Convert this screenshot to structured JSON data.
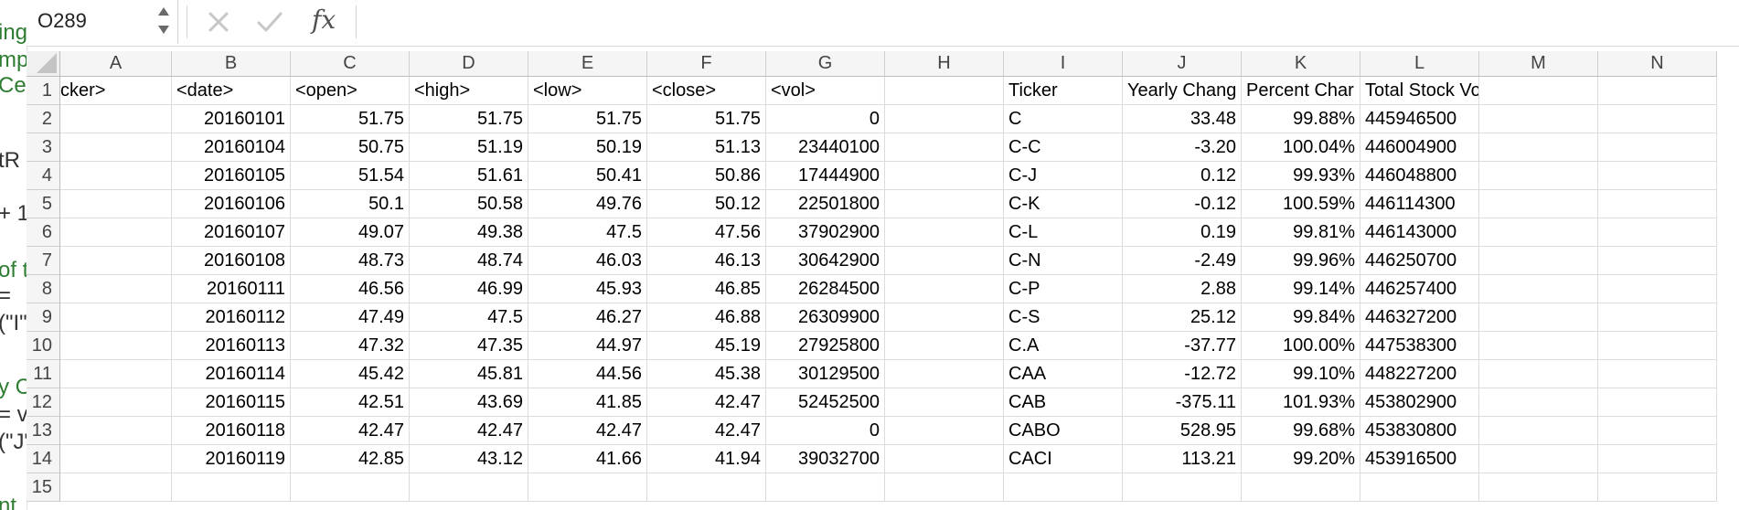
{
  "left_window_fragments": [
    "ing",
    "mp",
    "Cel",
    "tR",
    "+ 1",
    "of t",
    " =",
    "(\"I\"",
    "y C",
    "= v",
    "(\"J\"",
    "nt"
  ],
  "formula_bar": {
    "name_box": "O289",
    "cancel_icon": "x-icon",
    "enter_icon": "check-icon",
    "fx_label": "fx",
    "formula_value": ""
  },
  "columns": [
    "A",
    "B",
    "C",
    "D",
    "E",
    "F",
    "G",
    "H",
    "I",
    "J",
    "K",
    "L",
    "M",
    "N"
  ],
  "row_numbers": [
    "1",
    "2",
    "3",
    "4",
    "5",
    "6",
    "7",
    "8",
    "9",
    "10",
    "11",
    "12",
    "13",
    "14",
    "15"
  ],
  "header_row": [
    "<ticker>",
    "<date>",
    "<open>",
    "<high>",
    "<low>",
    "<close>",
    "<vol>",
    "",
    "Ticker",
    "Yearly Change",
    "Percent Change",
    "Total Stock Volume",
    "",
    ""
  ],
  "header_row_visible": [
    "cker>",
    "<date>",
    "<open>",
    "<high>",
    "<low>",
    "<close>",
    "<vol>",
    "",
    "Ticker",
    "Yearly Chang",
    "Percent Char",
    "Total Stock Volume",
    "",
    ""
  ],
  "rows": [
    [
      "",
      "20160101",
      "51.75",
      "51.75",
      "51.75",
      "51.75",
      "0",
      "",
      "C",
      "33.48",
      "99.88%",
      "445946500",
      "",
      ""
    ],
    [
      "",
      "20160104",
      "50.75",
      "51.19",
      "50.19",
      "51.13",
      "23440100",
      "",
      "C-C",
      "-3.20",
      "100.04%",
      "446004900",
      "",
      ""
    ],
    [
      "",
      "20160105",
      "51.54",
      "51.61",
      "50.41",
      "50.86",
      "17444900",
      "",
      "C-J",
      "0.12",
      "99.93%",
      "446048800",
      "",
      ""
    ],
    [
      "",
      "20160106",
      "50.1",
      "50.58",
      "49.76",
      "50.12",
      "22501800",
      "",
      "C-K",
      "-0.12",
      "100.59%",
      "446114300",
      "",
      ""
    ],
    [
      "",
      "20160107",
      "49.07",
      "49.38",
      "47.5",
      "47.56",
      "37902900",
      "",
      "C-L",
      "0.19",
      "99.81%",
      "446143000",
      "",
      ""
    ],
    [
      "",
      "20160108",
      "48.73",
      "48.74",
      "46.03",
      "46.13",
      "30642900",
      "",
      "C-N",
      "-2.49",
      "99.96%",
      "446250700",
      "",
      ""
    ],
    [
      "",
      "20160111",
      "46.56",
      "46.99",
      "45.93",
      "46.85",
      "26284500",
      "",
      "C-P",
      "2.88",
      "99.14%",
      "446257400",
      "",
      ""
    ],
    [
      "",
      "20160112",
      "47.49",
      "47.5",
      "46.27",
      "46.88",
      "26309900",
      "",
      "C-S",
      "25.12",
      "99.84%",
      "446327200",
      "",
      ""
    ],
    [
      "",
      "20160113",
      "47.32",
      "47.35",
      "44.97",
      "45.19",
      "27925800",
      "",
      "C.A",
      "-37.77",
      "100.00%",
      "447538300",
      "",
      ""
    ],
    [
      "",
      "20160114",
      "45.42",
      "45.81",
      "44.56",
      "45.38",
      "30129500",
      "",
      "CAA",
      "-12.72",
      "99.10%",
      "448227200",
      "",
      ""
    ],
    [
      "",
      "20160115",
      "42.51",
      "43.69",
      "41.85",
      "42.47",
      "52452500",
      "",
      "CAB",
      "-375.11",
      "101.93%",
      "453802900",
      "",
      ""
    ],
    [
      "",
      "20160118",
      "42.47",
      "42.47",
      "42.47",
      "42.47",
      "0",
      "",
      "CABO",
      "528.95",
      "99.68%",
      "453830800",
      "",
      ""
    ],
    [
      "",
      "20160119",
      "42.85",
      "43.12",
      "41.66",
      "41.94",
      "39032700",
      "",
      "CACI",
      "113.21",
      "99.20%",
      "453916500",
      "",
      ""
    ]
  ],
  "colors": {
    "header_bg": "#f5f5f5",
    "grid_line": "#dcdcdc",
    "left_strip_text": "#2e7d32"
  }
}
